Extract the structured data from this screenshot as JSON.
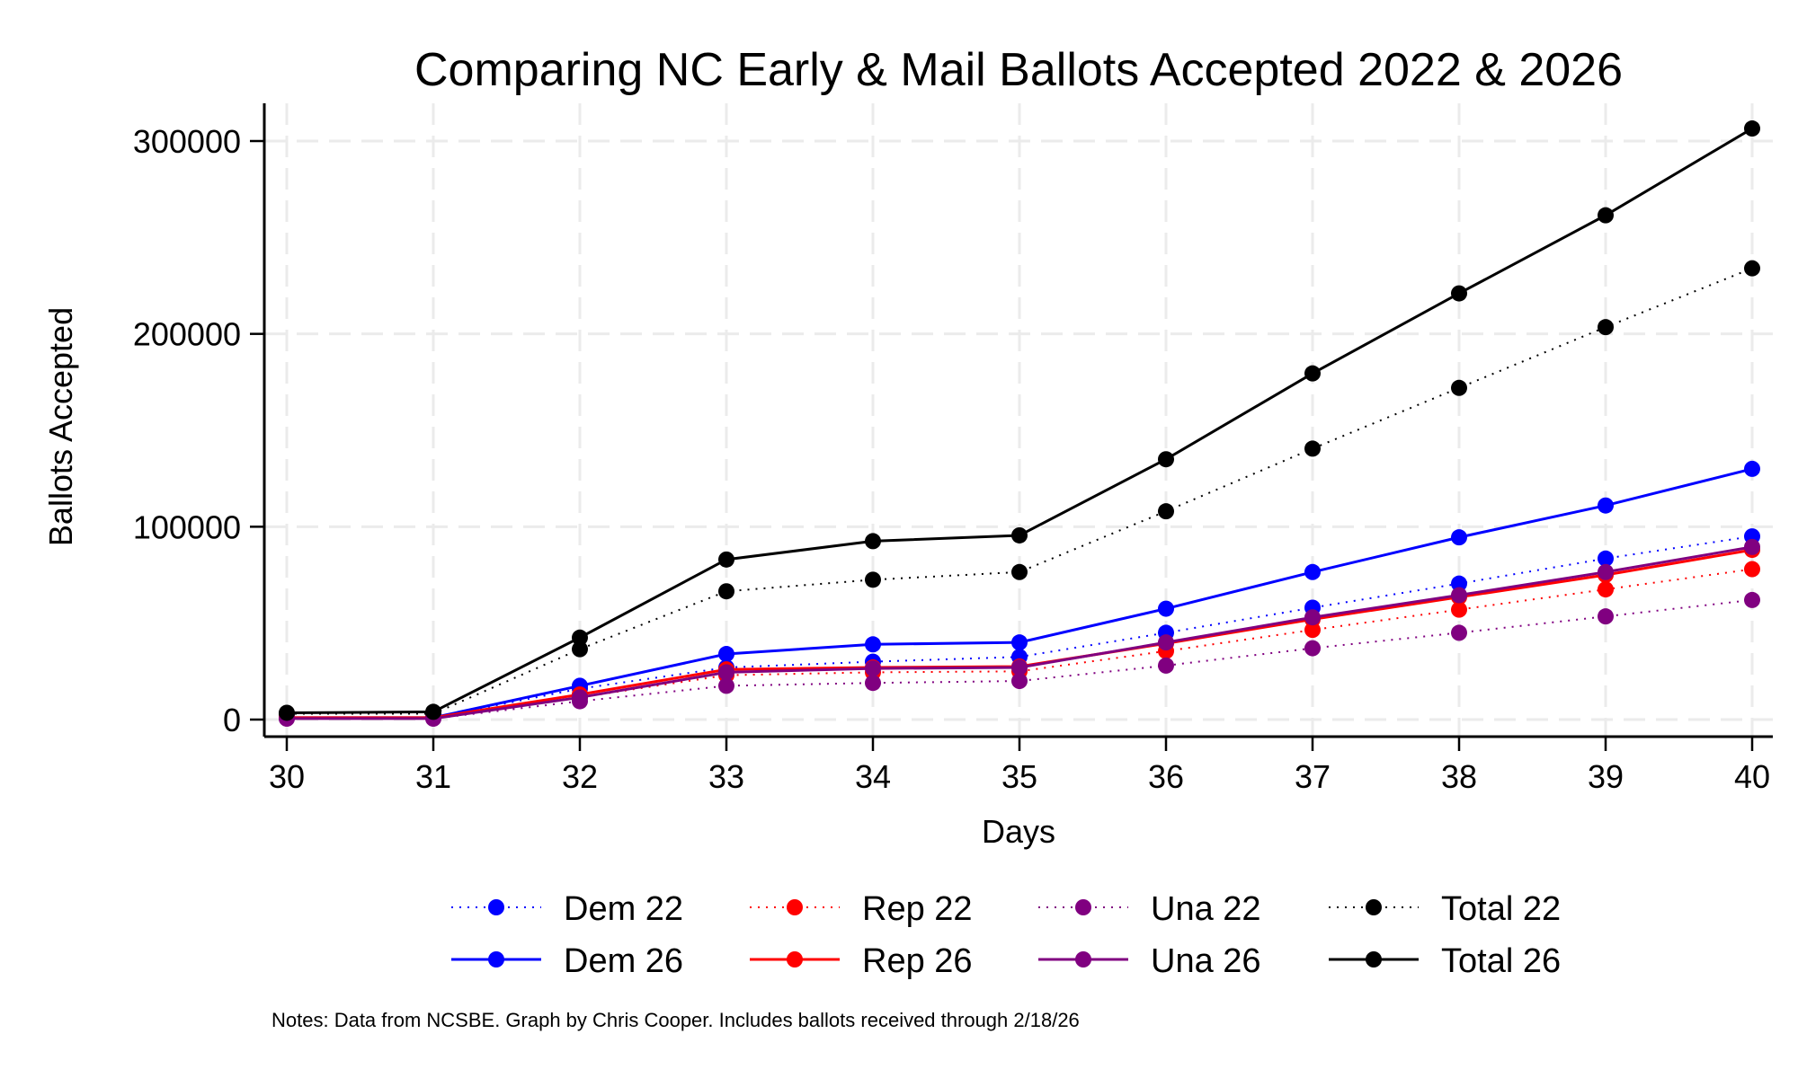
{
  "chart_data": {
    "type": "line",
    "title": "Comparing NC Early & Mail Ballots Accepted 2022 & 2026",
    "xlabel": "Days",
    "ylabel": "Ballots Accepted",
    "xlim": [
      30,
      40
    ],
    "ylim": [
      0,
      300000
    ],
    "x_ticks": [
      30,
      31,
      32,
      33,
      34,
      35,
      36,
      37,
      38,
      39,
      40
    ],
    "y_ticks": [
      0,
      100000,
      200000,
      300000
    ],
    "grid": true,
    "legend_position": "bottom",
    "x": [
      30,
      31,
      32,
      33,
      34,
      35,
      36,
      37,
      38,
      39,
      40
    ],
    "series": [
      {
        "name": "Dem 22",
        "color": "#0000ff",
        "style": "dotted",
        "values": [
          1000,
          1000,
          16000,
          27000,
          30000,
          32500,
          45000,
          58000,
          70500,
          83500,
          95000
        ]
      },
      {
        "name": "Rep 22",
        "color": "#ff0000",
        "style": "dotted",
        "values": [
          1000,
          1000,
          11500,
          23000,
          24500,
          25000,
          35500,
          46500,
          57000,
          67500,
          78000
        ]
      },
      {
        "name": "Una 22",
        "color": "#800080",
        "style": "dotted",
        "values": [
          500,
          500,
          9500,
          17500,
          19000,
          20000,
          28000,
          37000,
          45000,
          53500,
          62000
        ]
      },
      {
        "name": "Total 22",
        "color": "#000000",
        "style": "dotted",
        "values": [
          3000,
          3000,
          36500,
          66500,
          72500,
          76500,
          108000,
          140500,
          172000,
          203500,
          234000
        ]
      },
      {
        "name": "Dem 26",
        "color": "#0000ff",
        "style": "solid",
        "values": [
          1000,
          1000,
          17500,
          34000,
          39000,
          40000,
          57500,
          76500,
          94500,
          111000,
          130000
        ]
      },
      {
        "name": "Rep 26",
        "color": "#ff0000",
        "style": "solid",
        "values": [
          1000,
          1000,
          13000,
          26000,
          27000,
          27500,
          39500,
          52000,
          63500,
          75000,
          88000
        ]
      },
      {
        "name": "Una 26",
        "color": "#800080",
        "style": "solid",
        "values": [
          500,
          500,
          11500,
          24500,
          26500,
          27000,
          40000,
          53000,
          64500,
          76500,
          89500
        ]
      },
      {
        "name": "Total 26",
        "color": "#000000",
        "style": "solid",
        "values": [
          3500,
          4000,
          42500,
          83000,
          92500,
          95500,
          135000,
          179500,
          221000,
          261500,
          306500
        ]
      }
    ],
    "notes": "Notes: Data from NCSBE. Graph by Chris Cooper. Includes ballots received through 2/18/26"
  }
}
